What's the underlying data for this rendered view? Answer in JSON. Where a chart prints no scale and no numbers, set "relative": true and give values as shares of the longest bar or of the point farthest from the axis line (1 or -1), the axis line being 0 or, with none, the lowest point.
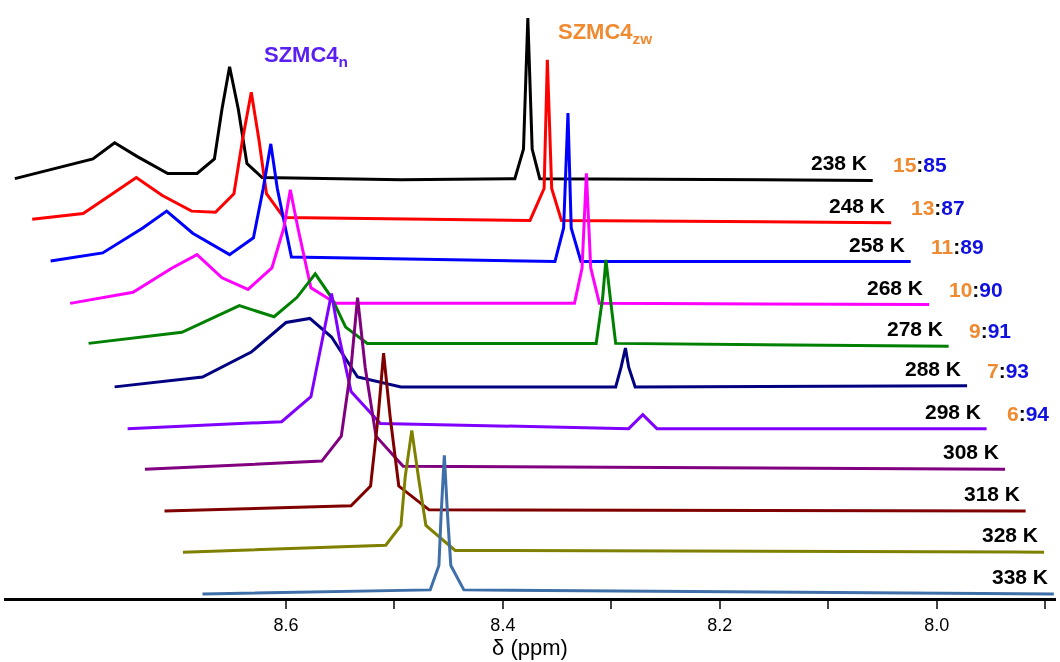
{
  "chart_data": {
    "type": "line",
    "relative": true,
    "xlabel": "δ (ppm)",
    "xlim": [
      8.86,
      7.89
    ],
    "xticks": [
      8.6,
      {
        "value": 8.5,
        "label": null
      },
      8.4,
      {
        "value": 8.3,
        "label": null
      },
      8.2,
      {
        "value": 8.1,
        "label": null
      },
      {
        "value": 8.0,
        "label": "8.0"
      },
      {
        "value": 7.9,
        "label": null
      }
    ],
    "marker": "none",
    "line_style": "solid",
    "annotations": [
      "SZMC4$_{n}$",
      "SZMC4$_{zw}$",
      "15:85",
      "13:87",
      "11:89",
      "10:90",
      "9:91",
      "7:93",
      "6:94"
    ],
    "series": [
      {
        "name": "238 K",
        "color": "#000000",
        "x": [
          8.85,
          8.778,
          8.758,
          8.737,
          8.709,
          8.682,
          8.666,
          8.659,
          8.652,
          8.644,
          8.636,
          8.622,
          8.494,
          8.389,
          8.381,
          8.377,
          8.373,
          8.366,
          8.059
        ],
        "values": [
          0.723,
          0.757,
          0.785,
          0.761,
          0.732,
          0.732,
          0.757,
          0.843,
          0.916,
          0.843,
          0.749,
          0.725,
          0.721,
          0.723,
          0.774,
          1.0,
          0.774,
          0.723,
          0.72
        ]
      },
      {
        "name": "248 K",
        "color": "#ff0000",
        "x": [
          8.834,
          8.787,
          8.76,
          8.738,
          8.714,
          8.687,
          8.665,
          8.648,
          8.64,
          8.632,
          8.625,
          8.618,
          8.602,
          8.375,
          8.362,
          8.359,
          8.355,
          8.346,
          8.042
        ],
        "values": [
          0.653,
          0.663,
          0.697,
          0.725,
          0.694,
          0.667,
          0.665,
          0.697,
          0.791,
          0.872,
          0.791,
          0.697,
          0.656,
          0.651,
          0.706,
          0.928,
          0.706,
          0.651,
          0.647
        ]
      },
      {
        "name": "258 K",
        "color": "#0000ff",
        "x": [
          8.817,
          8.769,
          8.732,
          8.71,
          8.686,
          8.652,
          8.63,
          8.621,
          8.614,
          8.608,
          8.595,
          8.352,
          8.344,
          8.34,
          8.337,
          8.328,
          8.024
        ],
        "values": [
          0.581,
          0.595,
          0.638,
          0.667,
          0.629,
          0.592,
          0.621,
          0.706,
          0.783,
          0.706,
          0.588,
          0.58,
          0.638,
          0.836,
          0.638,
          0.58,
          0.58
        ]
      },
      {
        "name": "268 K",
        "color": "#ff00ff",
        "x": [
          8.799,
          8.741,
          8.705,
          8.682,
          8.659,
          8.635,
          8.613,
          8.602,
          8.596,
          8.589,
          8.577,
          8.554,
          8.334,
          8.327,
          8.323,
          8.319,
          8.311,
          8.007
        ],
        "values": [
          0.508,
          0.527,
          0.569,
          0.592,
          0.552,
          0.532,
          0.569,
          0.638,
          0.704,
          0.638,
          0.535,
          0.508,
          0.508,
          0.569,
          0.732,
          0.569,
          0.508,
          0.506
        ]
      },
      {
        "name": "278 K",
        "color": "#008000",
        "x": [
          8.782,
          8.696,
          8.643,
          8.611,
          8.59,
          8.573,
          8.558,
          8.545,
          8.525,
          8.314,
          8.308,
          8.305,
          8.301,
          8.296,
          7.989
        ],
        "values": [
          0.439,
          0.458,
          0.504,
          0.485,
          0.518,
          0.559,
          0.518,
          0.467,
          0.439,
          0.439,
          0.518,
          0.583,
          0.518,
          0.439,
          0.434
        ]
      },
      {
        "name": "288 K",
        "color": "#000080",
        "x": [
          8.758,
          8.677,
          8.632,
          8.6,
          8.578,
          8.558,
          8.534,
          8.494,
          8.296,
          8.291,
          8.287,
          8.284,
          8.278,
          7.972
        ],
        "values": [
          0.364,
          0.381,
          0.424,
          0.475,
          0.482,
          0.45,
          0.381,
          0.364,
          0.364,
          0.398,
          0.431,
          0.398,
          0.364,
          0.366
        ]
      },
      {
        "name": "298 K",
        "color": "#8000ff",
        "x": [
          8.746,
          8.604,
          8.577,
          8.566,
          8.558,
          8.551,
          8.54,
          8.513,
          8.284,
          8.271,
          8.258,
          7.954
        ],
        "values": [
          0.292,
          0.304,
          0.347,
          0.45,
          0.525,
          0.45,
          0.356,
          0.301,
          0.292,
          0.316,
          0.292,
          0.292
        ]
      },
      {
        "name": "308 K",
        "color": "#800080",
        "x": [
          8.73,
          8.567,
          8.549,
          8.54,
          8.534,
          8.527,
          8.517,
          8.492,
          7.937
        ],
        "values": [
          0.222,
          0.236,
          0.279,
          0.398,
          0.518,
          0.398,
          0.279,
          0.227,
          0.222
        ]
      },
      {
        "name": "318 K",
        "color": "#800000",
        "x": [
          8.712,
          8.54,
          8.522,
          8.515,
          8.51,
          8.504,
          8.496,
          8.468,
          7.918
        ],
        "values": [
          0.15,
          0.159,
          0.193,
          0.313,
          0.422,
          0.313,
          0.193,
          0.152,
          0.15
        ]
      },
      {
        "name": "328 K",
        "color": "#808000",
        "x": [
          8.695,
          8.508,
          8.494,
          8.49,
          8.484,
          8.478,
          8.471,
          8.444,
          7.901
        ],
        "values": [
          0.079,
          0.091,
          0.125,
          0.21,
          0.289,
          0.21,
          0.125,
          0.082,
          0.079
        ]
      },
      {
        "name": "338 K",
        "color": "#3f6fa8",
        "x": [
          8.677,
          8.467,
          8.459,
          8.457,
          8.454,
          8.451,
          8.448,
          8.436,
          7.892
        ],
        "values": [
          0.007,
          0.014,
          0.056,
          0.142,
          0.246,
          0.142,
          0.056,
          0.014,
          0.007
        ]
      }
    ]
  }
}
